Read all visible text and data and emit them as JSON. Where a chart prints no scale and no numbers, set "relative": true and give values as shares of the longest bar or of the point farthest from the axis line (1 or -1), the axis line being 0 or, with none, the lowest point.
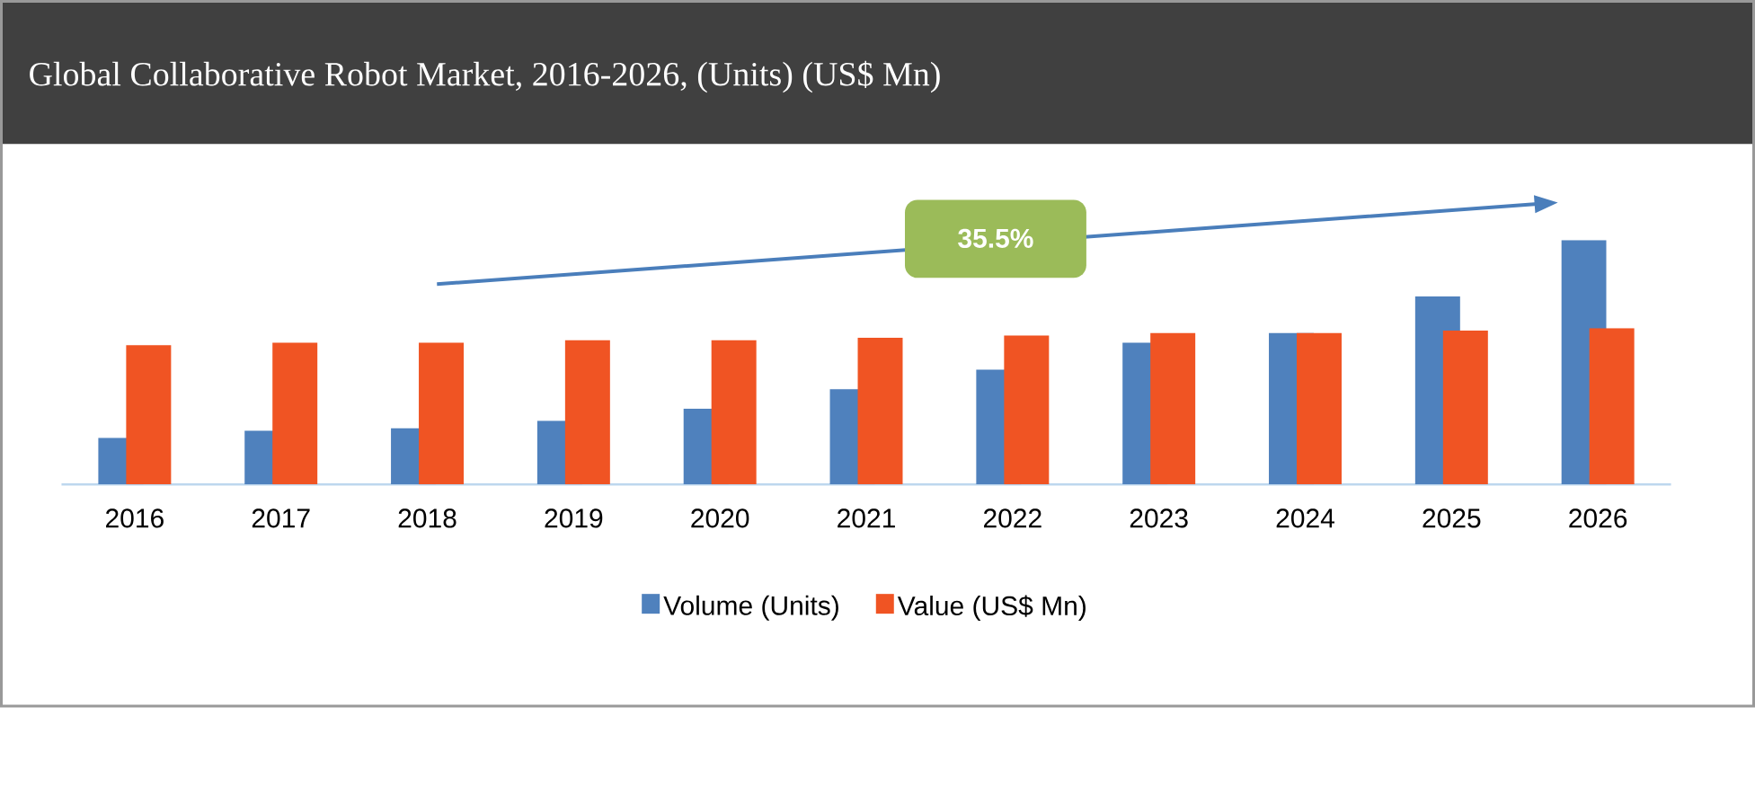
{
  "chart_data": {
    "type": "bar",
    "title": "Global Collaborative Robot Market, 2016-2026, (Units) (US$ Mn)",
    "relative": true,
    "legend": "bottom",
    "categories": [
      "2016",
      "2017",
      "2018",
      "2019",
      "2020",
      "2021",
      "2022",
      "2023",
      "2024",
      "2025",
      "2026"
    ],
    "series": [
      {
        "name": "Volume (Units)",
        "color": "#4f81bd",
        "values": [
          0.19,
          0.22,
          0.23,
          0.26,
          0.31,
          0.39,
          0.47,
          0.58,
          0.62,
          0.77,
          1.0
        ]
      },
      {
        "name": "Value (US$ Mn)",
        "color": "#f05423",
        "values": [
          0.57,
          0.58,
          0.58,
          0.59,
          0.59,
          0.6,
          0.61,
          0.62,
          0.62,
          0.63,
          0.64
        ]
      }
    ],
    "annotations": [
      "35.5%"
    ]
  }
}
